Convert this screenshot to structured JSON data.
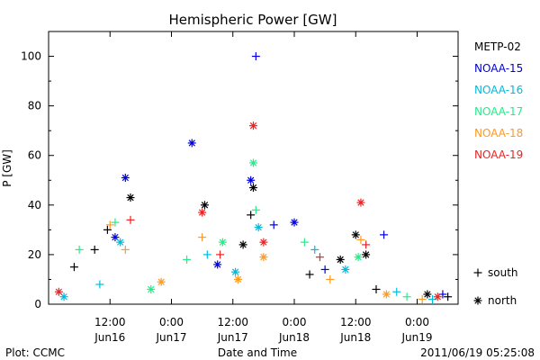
{
  "chart_data": {
    "type": "scatter",
    "title": "Hemispheric Power [GW]",
    "xlabel": "Date and Time",
    "ylabel": "P [GW]",
    "ylim": [
      0,
      110
    ],
    "yticks": [
      0,
      20,
      40,
      60,
      80,
      100
    ],
    "xlim": [
      "2011-06-16 00:00",
      "2011-06-19 08:00"
    ],
    "xticks": [
      {
        "x": "2011-06-16 12:00",
        "time": "12:00",
        "date": "Jun16"
      },
      {
        "x": "2011-06-17 00:00",
        "time": "0:00",
        "date": "Jun17"
      },
      {
        "x": "2011-06-17 12:00",
        "time": "12:00",
        "date": "Jun17"
      },
      {
        "x": "2011-06-18 00:00",
        "time": "0:00",
        "date": "Jun18"
      },
      {
        "x": "2011-06-18 12:00",
        "time": "12:00",
        "date": "Jun18"
      },
      {
        "x": "2011-06-19 00:00",
        "time": "0:00",
        "date": "Jun19"
      }
    ],
    "series": [
      {
        "name": "METP-02",
        "color": "#000000",
        "points": [
          [
            "2011-06-16 05:00",
            15,
            "south"
          ],
          [
            "2011-06-16 09:00",
            22,
            "south"
          ],
          [
            "2011-06-16 11:30",
            30,
            "south"
          ],
          [
            "2011-06-16 16:00",
            43,
            "north"
          ],
          [
            "2011-06-17 06:30",
            40,
            "north"
          ],
          [
            "2011-06-17 14:00",
            24,
            "north"
          ],
          [
            "2011-06-17 16:00",
            47,
            "north"
          ],
          [
            "2011-06-17 15:30",
            36,
            "south"
          ],
          [
            "2011-06-18 12:00",
            28,
            "north"
          ],
          [
            "2011-06-18 14:00",
            20,
            "north"
          ],
          [
            "2011-06-18 03:00",
            12,
            "south"
          ],
          [
            "2011-06-18 09:00",
            18,
            "north"
          ],
          [
            "2011-06-18 16:00",
            6,
            "south"
          ],
          [
            "2011-06-19 02:00",
            4,
            "north"
          ],
          [
            "2011-06-19 06:00",
            3,
            "south"
          ]
        ]
      },
      {
        "name": "NOAA-15",
        "color": "#0000dd",
        "points": [
          [
            "2011-06-16 15:00",
            51,
            "north"
          ],
          [
            "2011-06-17 04:00",
            65,
            "north"
          ],
          [
            "2011-06-17 15:30",
            50,
            "north"
          ],
          [
            "2011-06-17 16:30",
            100,
            "south"
          ],
          [
            "2011-06-17 20:00",
            32,
            "south"
          ],
          [
            "2011-06-18 00:00",
            33,
            "north"
          ],
          [
            "2011-06-18 17:30",
            28,
            "south"
          ],
          [
            "2011-06-18 06:00",
            14,
            "south"
          ],
          [
            "2011-06-17 09:00",
            16,
            "north"
          ],
          [
            "2011-06-16 13:00",
            27,
            "north"
          ],
          [
            "2011-06-19 05:00",
            4,
            "south"
          ]
        ]
      },
      {
        "name": "NOAA-16",
        "color": "#00bbdd",
        "points": [
          [
            "2011-06-16 14:00",
            25,
            "north"
          ],
          [
            "2011-06-16 10:00",
            8,
            "south"
          ],
          [
            "2011-06-17 07:00",
            20,
            "south"
          ],
          [
            "2011-06-17 17:00",
            31,
            "north"
          ],
          [
            "2011-06-17 12:30",
            13,
            "north"
          ],
          [
            "2011-06-18 04:00",
            22,
            "south"
          ],
          [
            "2011-06-18 10:00",
            14,
            "north"
          ],
          [
            "2011-06-18 20:00",
            5,
            "south"
          ],
          [
            "2011-06-16 03:00",
            3,
            "north"
          ],
          [
            "2011-06-19 03:00",
            2,
            "south"
          ]
        ]
      },
      {
        "name": "NOAA-17",
        "color": "#22ee88",
        "points": [
          [
            "2011-06-16 06:00",
            22,
            "south"
          ],
          [
            "2011-06-16 13:00",
            33,
            "south"
          ],
          [
            "2011-06-17 03:00",
            18,
            "south"
          ],
          [
            "2011-06-17 16:00",
            57,
            "north"
          ],
          [
            "2011-06-17 16:30",
            38,
            "south"
          ],
          [
            "2011-06-18 02:00",
            25,
            "south"
          ],
          [
            "2011-06-18 12:30",
            19,
            "north"
          ],
          [
            "2011-06-17 10:00",
            25,
            "north"
          ],
          [
            "2011-06-18 22:00",
            3,
            "south"
          ],
          [
            "2011-06-16 20:00",
            6,
            "north"
          ]
        ]
      },
      {
        "name": "NOAA-18",
        "color": "#ff9922",
        "points": [
          [
            "2011-06-16 12:00",
            32,
            "south"
          ],
          [
            "2011-06-16 15:00",
            22,
            "south"
          ],
          [
            "2011-06-17 06:00",
            27,
            "south"
          ],
          [
            "2011-06-17 18:00",
            19,
            "north"
          ],
          [
            "2011-06-17 13:00",
            10,
            "north"
          ],
          [
            "2011-06-18 07:00",
            10,
            "south"
          ],
          [
            "2011-06-18 13:00",
            26,
            "south"
          ],
          [
            "2011-06-18 18:00",
            4,
            "north"
          ],
          [
            "2011-06-19 01:00",
            2,
            "south"
          ],
          [
            "2011-06-16 22:00",
            9,
            "north"
          ]
        ]
      },
      {
        "name": "NOAA-19",
        "color": "#ee2222",
        "points": [
          [
            "2011-06-16 16:00",
            34,
            "south"
          ],
          [
            "2011-06-17 06:00",
            37,
            "north"
          ],
          [
            "2011-06-17 16:00",
            72,
            "north"
          ],
          [
            "2011-06-17 18:00",
            25,
            "north"
          ],
          [
            "2011-06-18 13:00",
            41,
            "north"
          ],
          [
            "2011-06-18 14:00",
            24,
            "south"
          ],
          [
            "2011-06-17 09:30",
            20,
            "south"
          ],
          [
            "2011-06-18 05:00",
            19,
            "south"
          ],
          [
            "2011-06-16 02:00",
            5,
            "north"
          ],
          [
            "2011-06-19 04:00",
            3,
            "north"
          ]
        ]
      }
    ],
    "markers": [
      {
        "symbol": "+",
        "label": "south"
      },
      {
        "symbol": "*",
        "label": "north"
      }
    ]
  },
  "footer": {
    "left": "Plot: CCMC",
    "right": "2011/06/19 05:25:08"
  }
}
